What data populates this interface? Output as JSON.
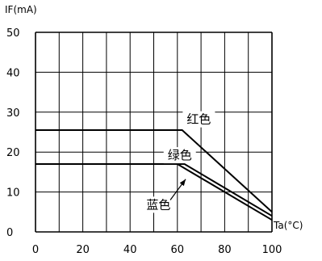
{
  "chart_data": {
    "type": "line",
    "title": "",
    "ylabel": "IF(mA)",
    "xlabel": "Ta(°C)",
    "xlim": [
      0,
      100
    ],
    "ylim": [
      0,
      50
    ],
    "x_ticks": [
      0,
      20,
      40,
      60,
      80,
      100
    ],
    "y_ticks": [
      0,
      10,
      20,
      30,
      40,
      50
    ],
    "grid": true,
    "series": [
      {
        "name": "红色",
        "x": [
          0,
          62,
          100
        ],
        "y": [
          25.5,
          25.5,
          5
        ]
      },
      {
        "name": "绿色",
        "x": [
          0,
          63,
          100
        ],
        "y": [
          17,
          17,
          4
        ]
      },
      {
        "name": "蓝色",
        "x": [
          0,
          60,
          100
        ],
        "y": [
          17,
          17,
          3
        ]
      }
    ]
  }
}
